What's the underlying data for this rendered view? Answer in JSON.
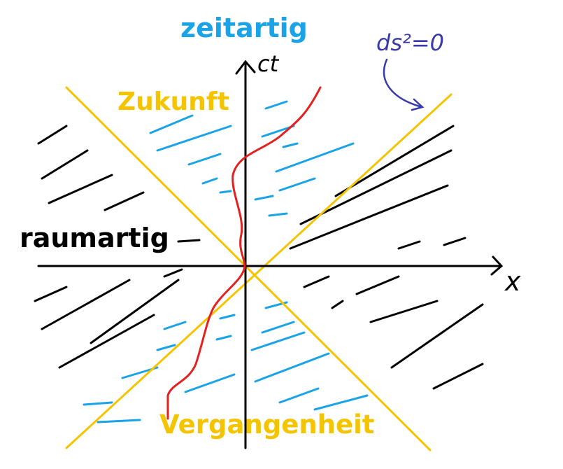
{
  "labels": {
    "top": "zeitartig",
    "future": "Zukunft",
    "left": "raumartig",
    "past": "Vergangenheit",
    "vertical_axis": "ct",
    "horizontal_axis": "x",
    "note": "ds²=0"
  },
  "colors": {
    "axes": "#000000",
    "light_cone": "#f5c400",
    "timelike_hatch": "#1aa3e6",
    "spacelike_hatch": "#000000",
    "worldline": "#e52020",
    "note": "#3a3aaa",
    "label_top": "#1aa3e6",
    "label_cone": "#f5c400",
    "label_left": "#000000"
  }
}
